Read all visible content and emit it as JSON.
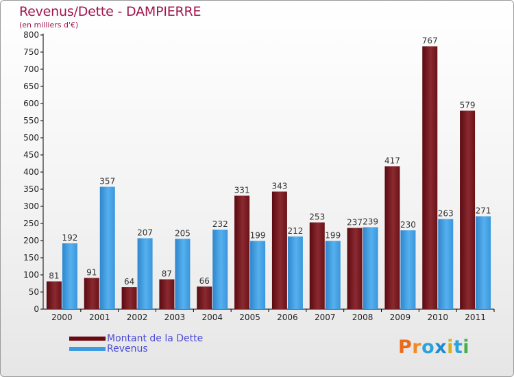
{
  "title": "Revenus/Dette - DAMPIERRE",
  "subtitle": "(en milliers d'€)",
  "colors": {
    "title": "#a0164e",
    "debt": "#7a1e24",
    "revenue": "#3e9be0",
    "legend_text": "#4a4ad8"
  },
  "legend": {
    "debt_label": "Montant de la Dette",
    "revenue_label": "Revenus"
  },
  "logo": {
    "letters": [
      "P",
      "r",
      "o",
      "x",
      "i",
      "t",
      "i"
    ],
    "colors": [
      "#e86a1a",
      "#f08a24",
      "#2aa2dc",
      "#1f8ad0",
      "#d4b21f",
      "#2aa2dc",
      "#48b04a"
    ]
  },
  "chart_data": {
    "type": "bar",
    "categories": [
      "2000",
      "2001",
      "2002",
      "2003",
      "2004",
      "2005",
      "2006",
      "2007",
      "2008",
      "2009",
      "2010",
      "2011"
    ],
    "series": [
      {
        "name": "Montant de la Dette",
        "values": [
          81,
          91,
          64,
          87,
          66,
          331,
          343,
          253,
          237,
          417,
          767,
          579
        ]
      },
      {
        "name": "Revenus",
        "values": [
          192,
          357,
          207,
          205,
          232,
          199,
          212,
          199,
          239,
          230,
          263,
          271
        ]
      }
    ],
    "ylim": [
      0,
      800
    ],
    "yticks": [
      "0",
      "50",
      "100",
      "150",
      "200",
      "250",
      "300",
      "350",
      "400",
      "450",
      "500",
      "550",
      "600",
      "650",
      "700",
      "750",
      "800"
    ],
    "grid": false,
    "legend_position": "bottom-left"
  }
}
